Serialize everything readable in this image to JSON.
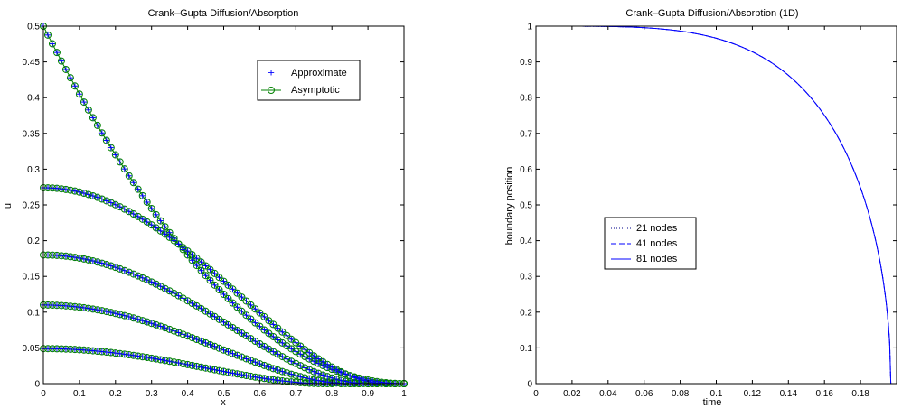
{
  "chart_data": [
    {
      "type": "line",
      "title": "Crank–Gupta Diffusion/Absorption",
      "xlabel": "x",
      "ylabel": "u",
      "xlim": [
        0,
        1
      ],
      "ylim": [
        0,
        0.5
      ],
      "xticks": [
        "0",
        "0.1",
        "0.2",
        "0.3",
        "0.4",
        "0.5",
        "0.6",
        "0.7",
        "0.8",
        "0.9",
        "1"
      ],
      "yticks": [
        "0",
        "0.05",
        "0.1",
        "0.15",
        "0.2",
        "0.25",
        "0.3",
        "0.35",
        "0.4",
        "0.45",
        "0.5"
      ],
      "legend_position": "top-right",
      "grid": false,
      "series": [
        {
          "name": "Approximate",
          "marker": "+",
          "color": "#0000ff"
        },
        {
          "name": "Asymptotic",
          "marker": "o",
          "color": "#008000"
        }
      ],
      "curves": [
        {
          "front": 1.0,
          "peak": 0.5,
          "form": "linear-start"
        },
        {
          "front": 0.95,
          "peak": 0.274,
          "form": "flat-start"
        },
        {
          "front": 0.9,
          "peak": 0.18,
          "form": "flat-start"
        },
        {
          "front": 0.85,
          "peak": 0.11,
          "form": "flat-start"
        },
        {
          "front": 0.78,
          "peak": 0.049,
          "form": "flat-start"
        }
      ]
    },
    {
      "type": "line",
      "title": "Crank–Gupta Diffusion/Absorption (1D)",
      "xlabel": "time",
      "ylabel": "boundary position",
      "xlim": [
        0,
        0.2
      ],
      "ylim": [
        0,
        1
      ],
      "xticks": [
        "0",
        "0.02",
        "0.04",
        "0.06",
        "0.08",
        "0.1",
        "0.12",
        "0.14",
        "0.16",
        "0.18"
      ],
      "yticks": [
        "0",
        "0.1",
        "0.2",
        "0.3",
        "0.4",
        "0.5",
        "0.6",
        "0.7",
        "0.8",
        "0.9",
        "1"
      ],
      "legend_position": "center-left",
      "grid": false,
      "t_end": 0.1968,
      "flat_until": 0.0,
      "series": [
        {
          "name": "21 nodes",
          "style": "dotted",
          "color": "#00008b"
        },
        {
          "name": "41 nodes",
          "style": "dashed",
          "color": "#0000ff"
        },
        {
          "name": "81 nodes",
          "style": "solid",
          "color": "#0000ff"
        }
      ]
    }
  ]
}
